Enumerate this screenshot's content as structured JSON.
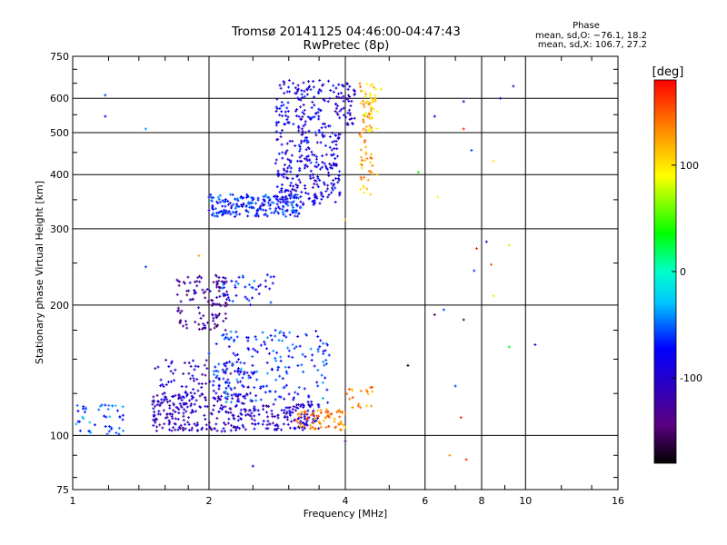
{
  "chart_data": {
    "type": "scatter",
    "title": "Tromsø 20141125 04:46:00-04:47:43",
    "subtitle": "RwPretec (8p)",
    "xlabel": "Frequency [MHz]",
    "ylabel": "Stationary phase Virtual Height [km]",
    "x_scale": "log",
    "y_scale": "log",
    "xlim": [
      1,
      16
    ],
    "ylim": [
      75,
      750
    ],
    "x_ticks": [
      "1",
      "2",
      "4",
      "6",
      "8",
      "10",
      "16"
    ],
    "y_ticks": [
      "75",
      "100",
      "200",
      "300",
      "400",
      "500",
      "600",
      "750"
    ],
    "grid": true,
    "colorbar": {
      "title": "[deg]",
      "range": [
        -180,
        180
      ],
      "ticks": [
        "100",
        "0",
        "-100"
      ],
      "colormap": "rainbow (black-purple-blue-cyan-green-yellow-orange-red)"
    },
    "stats": {
      "header": "Phase",
      "o_mode": "mean, sd,O: −76.1, 18.2",
      "x_mode": "mean, sd,X: 106.7, 27.2"
    },
    "clusters": [
      {
        "f_range": [
          1.0,
          1.3
        ],
        "h_range": [
          100,
          118
        ],
        "phase_mean": -55,
        "n": 45
      },
      {
        "f_range": [
          1.5,
          2.5
        ],
        "h_range": [
          102,
          125
        ],
        "phase_mean": -110,
        "n": 230
      },
      {
        "f_range": [
          2.5,
          3.5
        ],
        "h_range": [
          103,
          118
        ],
        "phase_mean": -100,
        "n": 130
      },
      {
        "f_range": [
          3.1,
          4.0
        ],
        "h_range": [
          103,
          115
        ],
        "phase_mean": 140,
        "n": 70
      },
      {
        "f_range": [
          1.5,
          2.5
        ],
        "h_range": [
          118,
          150
        ],
        "phase_mean": -100,
        "n": 110
      },
      {
        "f_range": [
          2.0,
          3.7
        ],
        "h_range": [
          118,
          175
        ],
        "phase_mean": -65,
        "n": 200
      },
      {
        "f_range": [
          4.0,
          4.6
        ],
        "h_range": [
          115,
          130
        ],
        "phase_mean": 130,
        "n": 20
      },
      {
        "f_range": [
          1.7,
          2.2
        ],
        "h_range": [
          175,
          235
        ],
        "phase_mean": -125,
        "n": 120
      },
      {
        "f_range": [
          2.1,
          2.8
        ],
        "h_range": [
          200,
          235
        ],
        "phase_mean": -70,
        "n": 40
      },
      {
        "f_range": [
          2.0,
          3.2
        ],
        "h_range": [
          320,
          360
        ],
        "phase_mean": -70,
        "n": 220
      },
      {
        "f_range": [
          2.8,
          3.9
        ],
        "h_range": [
          340,
          660
        ],
        "phase_mean": -90,
        "n": 380
      },
      {
        "f_range": [
          3.8,
          4.2
        ],
        "h_range": [
          520,
          650
        ],
        "phase_mean": -100,
        "n": 50
      },
      {
        "f_range": [
          4.3,
          4.6
        ],
        "h_range": [
          360,
          650
        ],
        "phase_mean": 125,
        "n": 60
      },
      {
        "f_range": [
          4.4,
          4.7
        ],
        "h_range": [
          500,
          650
        ],
        "phase_mean": 100,
        "n": 35
      }
    ],
    "isolated_points": [
      {
        "x": 1.18,
        "y": 610,
        "phase": -60
      },
      {
        "x": 1.18,
        "y": 545,
        "phase": -80
      },
      {
        "x": 1.45,
        "y": 510,
        "phase": -40
      },
      {
        "x": 1.45,
        "y": 245,
        "phase": -60
      },
      {
        "x": 1.9,
        "y": 260,
        "phase": 120
      },
      {
        "x": 2.0,
        "y": 355,
        "phase": -100
      },
      {
        "x": 2.5,
        "y": 85,
        "phase": -90
      },
      {
        "x": 4.0,
        "y": 97,
        "phase": -150
      },
      {
        "x": 4.0,
        "y": 315,
        "phase": 130
      },
      {
        "x": 5.8,
        "y": 405,
        "phase": 40
      },
      {
        "x": 6.3,
        "y": 545,
        "phase": -80
      },
      {
        "x": 6.4,
        "y": 355,
        "phase": 90
      },
      {
        "x": 5.5,
        "y": 145,
        "phase": -180
      },
      {
        "x": 6.3,
        "y": 190,
        "phase": -150
      },
      {
        "x": 6.6,
        "y": 195,
        "phase": -60
      },
      {
        "x": 7.3,
        "y": 185,
        "phase": -150
      },
      {
        "x": 7.0,
        "y": 130,
        "phase": -60
      },
      {
        "x": 6.8,
        "y": 90,
        "phase": 130
      },
      {
        "x": 7.4,
        "y": 88,
        "phase": 170
      },
      {
        "x": 7.2,
        "y": 110,
        "phase": 170
      },
      {
        "x": 7.3,
        "y": 590,
        "phase": -100
      },
      {
        "x": 7.3,
        "y": 510,
        "phase": 170
      },
      {
        "x": 7.6,
        "y": 455,
        "phase": -60
      },
      {
        "x": 7.8,
        "y": 270,
        "phase": 170
      },
      {
        "x": 7.7,
        "y": 240,
        "phase": -60
      },
      {
        "x": 8.2,
        "y": 280,
        "phase": -100
      },
      {
        "x": 8.5,
        "y": 430,
        "phase": 100
      },
      {
        "x": 8.4,
        "y": 248,
        "phase": 150
      },
      {
        "x": 8.5,
        "y": 210,
        "phase": 100
      },
      {
        "x": 8.8,
        "y": 600,
        "phase": -100
      },
      {
        "x": 9.2,
        "y": 275,
        "phase": 80
      },
      {
        "x": 9.2,
        "y": 160,
        "phase": 30
      },
      {
        "x": 9.4,
        "y": 640,
        "phase": -120
      },
      {
        "x": 10.5,
        "y": 162,
        "phase": -100
      },
      {
        "x": 4.8,
        "y": 630,
        "phase": 100
      },
      {
        "x": 4.7,
        "y": 400,
        "phase": 110
      }
    ]
  }
}
